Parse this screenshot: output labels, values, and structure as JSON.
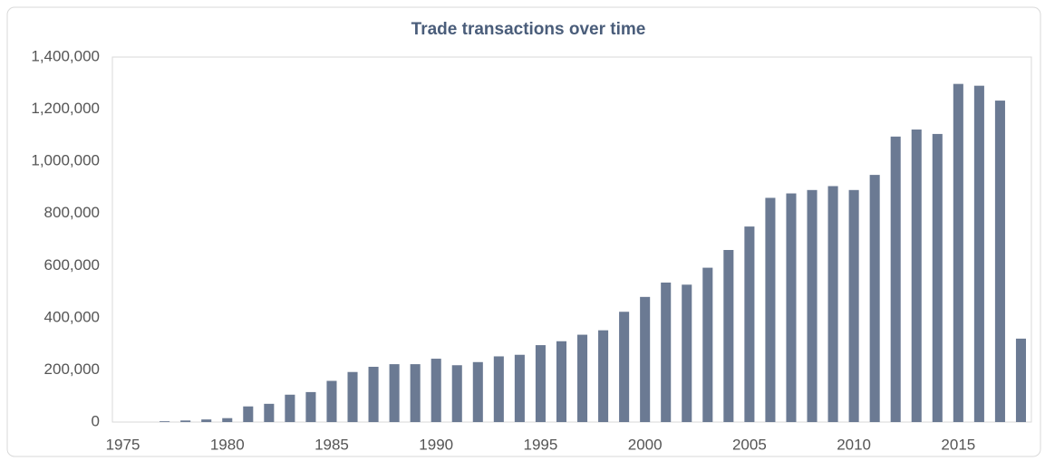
{
  "chart_data": {
    "type": "bar",
    "title": "Trade transactions over time",
    "x": [
      1975,
      1976,
      1977,
      1978,
      1979,
      1980,
      1981,
      1982,
      1983,
      1984,
      1985,
      1986,
      1987,
      1988,
      1989,
      1990,
      1991,
      1992,
      1993,
      1994,
      1995,
      1996,
      1997,
      1998,
      1999,
      2000,
      2001,
      2002,
      2003,
      2004,
      2005,
      2006,
      2007,
      2008,
      2009,
      2010,
      2011,
      2012,
      2013,
      2014,
      2015,
      2016,
      2017,
      2018
    ],
    "values": [
      0,
      0,
      3000,
      6000,
      10000,
      15000,
      60000,
      70000,
      105000,
      115000,
      158000,
      192000,
      212000,
      222000,
      222000,
      243000,
      218000,
      230000,
      252000,
      258000,
      295000,
      310000,
      335000,
      352000,
      423000,
      480000,
      535000,
      527000,
      592000,
      660000,
      750000,
      860000,
      877000,
      890000,
      905000,
      890000,
      948000,
      1095000,
      1122000,
      1105000,
      1297000,
      1290000,
      1233000,
      320000
    ],
    "color": "#6b7a93",
    "xlim": [
      1974.5,
      2018.5
    ],
    "xticks": [
      1975,
      1980,
      1985,
      1990,
      1995,
      2000,
      2005,
      2010,
      2015
    ],
    "ylim": [
      0,
      1400000
    ],
    "yticks": [
      0,
      {
        "value": 200000,
        "label": "200,000"
      },
      {
        "value": 400000,
        "label": "400,000"
      },
      {
        "value": 600000,
        "label": "600,000"
      },
      {
        "value": 800000,
        "label": "800,000"
      },
      {
        "value": 1000000,
        "label": "1,000,000"
      },
      {
        "value": 1200000,
        "label": "1,200,000"
      },
      {
        "value": 1400000,
        "label": "1,400,000"
      }
    ],
    "grid": false
  }
}
